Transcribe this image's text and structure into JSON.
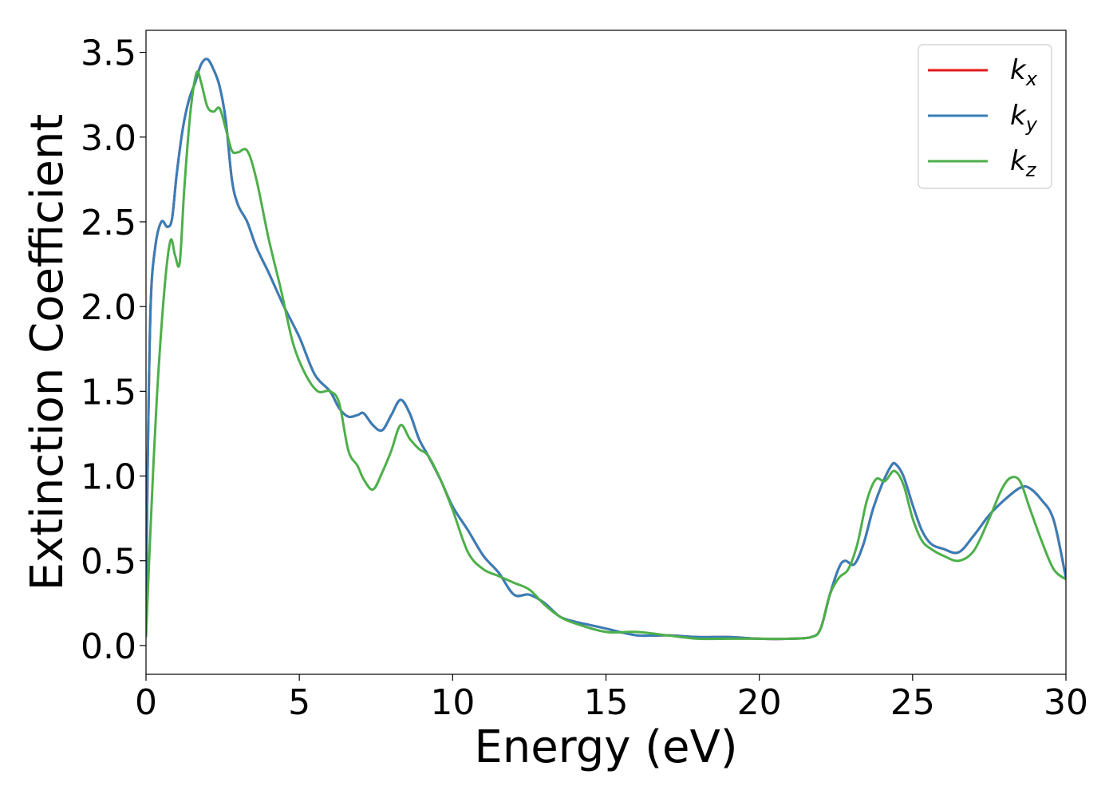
{
  "chart_data": {
    "type": "line",
    "title": "",
    "xlabel": "Energy (eV)",
    "ylabel": "Extinction Coefficient",
    "xlim": [
      0,
      30
    ],
    "ylim": [
      -0.17,
      3.63
    ],
    "xticks": [
      0,
      5,
      10,
      15,
      20,
      25,
      30
    ],
    "xtick_labels": [
      "0",
      "5",
      "10",
      "15",
      "20",
      "25",
      "30"
    ],
    "yticks": [
      0.0,
      0.5,
      1.0,
      1.5,
      2.0,
      2.5,
      3.0,
      3.5
    ],
    "ytick_labels": [
      "0.0",
      "0.5",
      "1.0",
      "1.5",
      "2.0",
      "2.5",
      "3.0",
      "3.5"
    ],
    "grid": false,
    "legend_position": "top-right",
    "series": [
      {
        "name": "k",
        "subscript": "x",
        "color": "#e41a1c",
        "x": [
          0,
          0.05,
          0.15,
          0.3,
          0.5,
          0.7,
          0.85,
          1.0,
          1.2,
          1.4,
          1.6,
          1.8,
          2.0,
          2.2,
          2.4,
          2.6,
          2.8,
          3.0,
          3.3,
          3.6,
          4.0,
          4.5,
          5.0,
          5.5,
          6.0,
          6.3,
          6.6,
          6.9,
          7.1,
          7.4,
          7.7,
          8.0,
          8.3,
          8.6,
          8.9,
          9.2,
          9.6,
          10.0,
          10.5,
          11.0,
          11.5,
          12.0,
          12.5,
          13.0,
          13.5,
          14.0,
          14.5,
          15.0,
          16.0,
          17.0,
          18.0,
          19.0,
          20.0,
          21.0,
          21.7,
          22.0,
          22.3,
          22.6,
          22.8,
          23.1,
          23.4,
          23.7,
          24.0,
          24.3,
          24.45,
          24.7,
          25.0,
          25.3,
          25.6,
          26.0,
          26.5,
          27.0,
          27.5,
          28.0,
          28.5,
          28.8,
          29.2,
          29.6,
          30.0
        ],
        "y": [
          0.05,
          1.0,
          2.0,
          2.35,
          2.5,
          2.47,
          2.52,
          2.78,
          3.05,
          3.22,
          3.32,
          3.43,
          3.46,
          3.4,
          3.3,
          3.1,
          2.75,
          2.6,
          2.5,
          2.35,
          2.2,
          2.0,
          1.82,
          1.6,
          1.5,
          1.4,
          1.35,
          1.36,
          1.37,
          1.3,
          1.27,
          1.36,
          1.45,
          1.37,
          1.22,
          1.12,
          0.98,
          0.82,
          0.68,
          0.53,
          0.43,
          0.3,
          0.3,
          0.25,
          0.17,
          0.14,
          0.12,
          0.1,
          0.06,
          0.06,
          0.05,
          0.05,
          0.04,
          0.04,
          0.05,
          0.1,
          0.3,
          0.46,
          0.5,
          0.48,
          0.6,
          0.8,
          0.95,
          1.06,
          1.07,
          1.0,
          0.83,
          0.68,
          0.6,
          0.57,
          0.55,
          0.65,
          0.77,
          0.86,
          0.93,
          0.93,
          0.86,
          0.74,
          0.4
        ]
      },
      {
        "name": "k",
        "subscript": "y",
        "color": "#377eb8",
        "x": [
          0,
          0.05,
          0.15,
          0.3,
          0.5,
          0.7,
          0.85,
          1.0,
          1.2,
          1.4,
          1.6,
          1.8,
          2.0,
          2.2,
          2.4,
          2.6,
          2.8,
          3.0,
          3.3,
          3.6,
          4.0,
          4.5,
          5.0,
          5.5,
          6.0,
          6.3,
          6.6,
          6.9,
          7.1,
          7.4,
          7.7,
          8.0,
          8.3,
          8.6,
          8.9,
          9.2,
          9.6,
          10.0,
          10.5,
          11.0,
          11.5,
          12.0,
          12.5,
          13.0,
          13.5,
          14.0,
          14.5,
          15.0,
          16.0,
          17.0,
          18.0,
          19.0,
          20.0,
          21.0,
          21.7,
          22.0,
          22.3,
          22.6,
          22.8,
          23.1,
          23.4,
          23.7,
          24.0,
          24.3,
          24.45,
          24.7,
          25.0,
          25.3,
          25.6,
          26.0,
          26.5,
          27.0,
          27.5,
          28.0,
          28.5,
          28.8,
          29.2,
          29.6,
          30.0
        ],
        "y": [
          0.05,
          1.0,
          2.0,
          2.35,
          2.5,
          2.47,
          2.52,
          2.78,
          3.05,
          3.22,
          3.32,
          3.43,
          3.46,
          3.4,
          3.3,
          3.1,
          2.75,
          2.6,
          2.5,
          2.35,
          2.2,
          2.0,
          1.82,
          1.6,
          1.5,
          1.4,
          1.35,
          1.36,
          1.37,
          1.3,
          1.27,
          1.36,
          1.45,
          1.37,
          1.22,
          1.12,
          0.98,
          0.82,
          0.68,
          0.53,
          0.43,
          0.3,
          0.3,
          0.25,
          0.17,
          0.14,
          0.12,
          0.1,
          0.06,
          0.06,
          0.05,
          0.05,
          0.04,
          0.04,
          0.05,
          0.1,
          0.3,
          0.46,
          0.5,
          0.48,
          0.6,
          0.8,
          0.95,
          1.06,
          1.07,
          1.0,
          0.83,
          0.68,
          0.6,
          0.57,
          0.55,
          0.65,
          0.77,
          0.86,
          0.93,
          0.93,
          0.86,
          0.74,
          0.4
        ]
      },
      {
        "name": "k",
        "subscript": "z",
        "color": "#4daf4a",
        "x": [
          0,
          0.15,
          0.35,
          0.6,
          0.8,
          0.95,
          1.1,
          1.25,
          1.45,
          1.65,
          1.8,
          2.0,
          2.2,
          2.4,
          2.6,
          2.8,
          3.0,
          3.3,
          3.6,
          4.0,
          4.4,
          4.8,
          5.2,
          5.6,
          6.0,
          6.3,
          6.6,
          6.9,
          7.1,
          7.4,
          7.7,
          8.0,
          8.3,
          8.6,
          8.9,
          9.2,
          9.6,
          10.0,
          10.5,
          11.0,
          11.5,
          12.0,
          12.5,
          13.0,
          13.5,
          14.0,
          15.0,
          16.0,
          17.0,
          18.0,
          19.0,
          20.0,
          21.0,
          21.7,
          22.0,
          22.3,
          22.6,
          22.9,
          23.2,
          23.5,
          23.8,
          24.1,
          24.4,
          24.7,
          25.0,
          25.3,
          25.6,
          26.0,
          26.5,
          27.0,
          27.5,
          27.9,
          28.2,
          28.5,
          28.8,
          29.2,
          29.6,
          30.0
        ],
        "y": [
          0.05,
          0.7,
          1.45,
          2.1,
          2.39,
          2.3,
          2.26,
          2.7,
          3.15,
          3.38,
          3.32,
          3.18,
          3.15,
          3.17,
          3.05,
          2.92,
          2.91,
          2.92,
          2.75,
          2.4,
          2.1,
          1.78,
          1.6,
          1.5,
          1.5,
          1.43,
          1.15,
          1.06,
          0.98,
          0.92,
          1.02,
          1.15,
          1.3,
          1.22,
          1.16,
          1.12,
          0.98,
          0.8,
          0.55,
          0.45,
          0.41,
          0.37,
          0.33,
          0.24,
          0.17,
          0.13,
          0.08,
          0.08,
          0.06,
          0.04,
          0.04,
          0.04,
          0.04,
          0.05,
          0.1,
          0.3,
          0.4,
          0.45,
          0.6,
          0.85,
          0.98,
          0.97,
          1.03,
          0.95,
          0.75,
          0.62,
          0.57,
          0.53,
          0.5,
          0.56,
          0.75,
          0.92,
          0.99,
          0.97,
          0.82,
          0.62,
          0.45,
          0.39
        ]
      }
    ]
  }
}
